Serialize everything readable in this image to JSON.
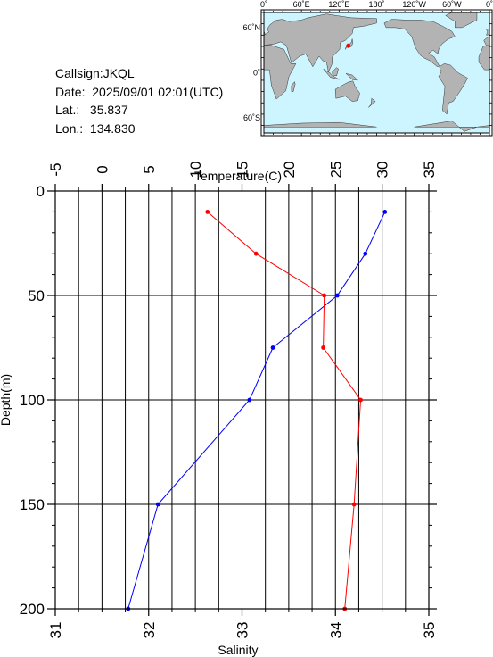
{
  "station": {
    "callsign_label": "Callsign:",
    "callsign": "JKQL",
    "date_label": "Date:",
    "date": "2025/09/01 02:01(UTC)",
    "lat_label": "Lat.:",
    "lat": "35.837",
    "lon_label": "Lon.:",
    "lon": "134.830"
  },
  "map": {
    "lon_ticks": [
      "0˚",
      "60˚E",
      "120˚E",
      "180˚",
      "120˚W",
      "60˚W",
      "0˚"
    ],
    "lat_ticks": [
      "60˚N",
      "0˚",
      "60˚S"
    ],
    "ocean_color": "#ccf5ff",
    "land_color": "#b3b3b3",
    "marker": {
      "lat": 35.837,
      "lon": 134.83,
      "color": "#ff0000"
    }
  },
  "chart_data": {
    "type": "line",
    "ylabel": "Depth(m)",
    "ylim": [
      200,
      0
    ],
    "y_ticks": [
      0,
      50,
      100,
      150,
      200
    ],
    "top_axis": {
      "label": "Temperature(C)",
      "range": [
        -5,
        35
      ],
      "ticks": [
        -5,
        0,
        5,
        10,
        15,
        20,
        25,
        30,
        35
      ]
    },
    "bottom_axis": {
      "label": "Salinity",
      "range": [
        31,
        35
      ],
      "ticks": [
        31,
        32,
        33,
        34,
        35
      ]
    },
    "grid": true,
    "series": [
      {
        "axis": "top",
        "color": "#0000ff",
        "points": [
          [
            30.3,
            10
          ],
          [
            28.2,
            30
          ],
          [
            25.2,
            50
          ],
          [
            18.3,
            75
          ],
          [
            15.8,
            100
          ],
          [
            6.0,
            150
          ],
          [
            2.8,
            200
          ]
        ]
      },
      {
        "axis": "bottom",
        "color": "#ff0000",
        "points": [
          [
            32.63,
            10
          ],
          [
            33.15,
            30
          ],
          [
            33.88,
            50
          ],
          [
            33.87,
            75
          ],
          [
            34.27,
            100
          ],
          [
            34.2,
            150
          ],
          [
            34.1,
            200
          ]
        ]
      }
    ]
  }
}
